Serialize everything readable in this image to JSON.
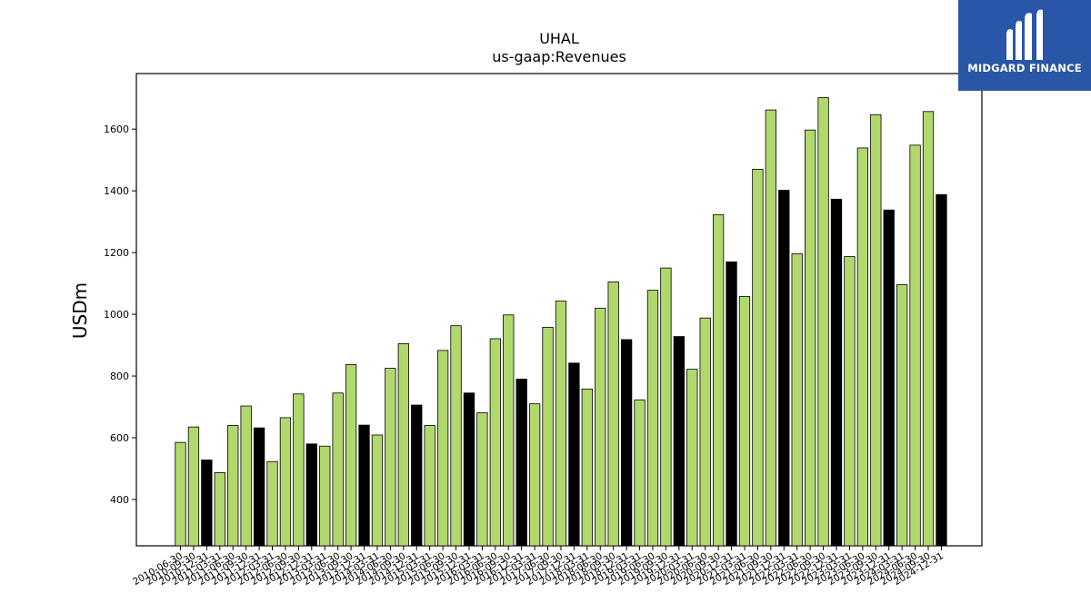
{
  "logo": {
    "text": "MIDGARD FINANCE"
  },
  "chart_data": {
    "type": "bar",
    "title": "UHAL",
    "subtitle": "us-gaap:Revenues",
    "xlabel": "",
    "ylabel": "USDm",
    "ylim": [
      250,
      1780
    ],
    "yticks": [
      400,
      600,
      800,
      1000,
      1200,
      1400,
      1600
    ],
    "colors": {
      "quarter": "#b0d86c",
      "fiscal_year": "#000000",
      "edge": "#000000"
    },
    "categories": [
      "2010-06-30",
      "2010-09-30",
      "2010-12-31",
      "2011-03-31",
      "2011-06-30",
      "2011-09-30",
      "2011-12-31",
      "2012-03-31",
      "2012-06-30",
      "2012-09-30",
      "2012-12-31",
      "2013-03-31",
      "2013-06-30",
      "2013-09-30",
      "2013-12-31",
      "2014-03-31",
      "2014-06-30",
      "2014-09-30",
      "2014-12-31",
      "2015-03-31",
      "2015-06-30",
      "2015-09-30",
      "2015-12-31",
      "2016-03-31",
      "2016-06-30",
      "2016-09-30",
      "2016-12-31",
      "2017-03-31",
      "2017-06-30",
      "2017-09-30",
      "2017-12-31",
      "2018-03-31",
      "2018-06-30",
      "2018-09-30",
      "2018-12-31",
      "2019-03-31",
      "2019-06-30",
      "2019-09-30",
      "2019-12-31",
      "2020-03-31",
      "2020-06-30",
      "2020-09-30",
      "2020-12-31",
      "2021-03-31",
      "2021-06-30",
      "2021-09-30",
      "2021-12-31",
      "2022-03-31",
      "2022-06-30",
      "2022-09-30",
      "2022-12-31",
      "2023-03-31",
      "2023-06-30",
      "2023-09-30",
      "2023-12-31",
      "2024-03-31",
      "2024-06-30",
      "2024-09-30",
      "2024-12-31"
    ],
    "values": [
      585,
      635,
      528,
      487,
      640,
      703,
      632,
      523,
      665,
      742,
      580,
      573,
      745,
      837,
      641,
      609,
      825,
      905,
      706,
      640,
      883,
      963,
      745,
      681,
      921,
      998,
      790,
      710,
      958,
      1043,
      842,
      758,
      1020,
      1105,
      918,
      723,
      1078,
      1150,
      928,
      822,
      988,
      1323,
      1170,
      1058,
      1470,
      1662,
      1402,
      1196,
      1597,
      1702,
      1373,
      1187,
      1539,
      1647,
      1338,
      1096,
      1548,
      1657,
      1388
    ],
    "bar_kind": [
      "q",
      "q",
      "fy",
      "q",
      "q",
      "q",
      "fy",
      "q",
      "q",
      "q",
      "fy",
      "q",
      "q",
      "q",
      "fy",
      "q",
      "q",
      "q",
      "fy",
      "q",
      "q",
      "q",
      "fy",
      "q",
      "q",
      "q",
      "fy",
      "q",
      "q",
      "q",
      "fy",
      "q",
      "q",
      "q",
      "fy",
      "q",
      "q",
      "q",
      "fy",
      "q",
      "q",
      "q",
      "fy",
      "q",
      "q",
      "q",
      "fy",
      "q",
      "q",
      "q",
      "fy",
      "q",
      "q",
      "q",
      "fy",
      "q",
      "q",
      "q",
      "fy"
    ]
  }
}
